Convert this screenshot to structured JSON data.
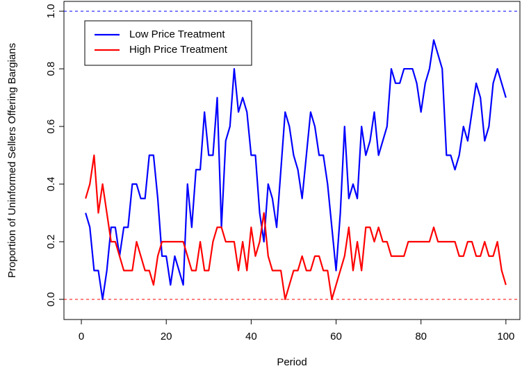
{
  "chart_data": {
    "type": "line",
    "x_label": "Period",
    "y_label": "Proportion of Uninformed Sellers Offering Bargians",
    "x": [
      1,
      2,
      3,
      4,
      5,
      6,
      7,
      8,
      9,
      10,
      11,
      12,
      13,
      14,
      15,
      16,
      17,
      18,
      19,
      20,
      21,
      22,
      23,
      24,
      25,
      26,
      27,
      28,
      29,
      30,
      31,
      32,
      33,
      34,
      35,
      36,
      37,
      38,
      39,
      40,
      41,
      42,
      43,
      44,
      45,
      46,
      47,
      48,
      49,
      50,
      51,
      52,
      53,
      54,
      55,
      56,
      57,
      58,
      59,
      60,
      61,
      62,
      63,
      64,
      65,
      66,
      67,
      68,
      69,
      70,
      71,
      72,
      73,
      74,
      75,
      76,
      77,
      78,
      79,
      80,
      81,
      82,
      83,
      84,
      85,
      86,
      87,
      88,
      89,
      90,
      91,
      92,
      93,
      94,
      95,
      96,
      97,
      98,
      99,
      100
    ],
    "series": [
      {
        "name": "Low Price Treatment",
        "color": "#0000ff",
        "values": [
          0.3,
          0.25,
          0.1,
          0.1,
          0,
          0.1,
          0.25,
          0.25,
          0.15,
          0.25,
          0.25,
          0.4,
          0.4,
          0.35,
          0.35,
          0.5,
          0.5,
          0.35,
          0.15,
          0.15,
          0.05,
          0.15,
          0.1,
          0.05,
          0.4,
          0.25,
          0.45,
          0.45,
          0.65,
          0.5,
          0.5,
          0.7,
          0.25,
          0.55,
          0.6,
          0.8,
          0.65,
          0.7,
          0.65,
          0.5,
          0.5,
          0.3,
          0.2,
          0.4,
          0.35,
          0.25,
          0.45,
          0.65,
          0.6,
          0.5,
          0.45,
          0.35,
          0.5,
          0.65,
          0.6,
          0.5,
          0.5,
          0.4,
          0.25,
          0.1,
          0.3,
          0.6,
          0.35,
          0.4,
          0.35,
          0.6,
          0.5,
          0.55,
          0.65,
          0.5,
          0.55,
          0.6,
          0.8,
          0.75,
          0.75,
          0.8,
          0.8,
          0.8,
          0.75,
          0.65,
          0.75,
          0.8,
          0.9,
          0.85,
          0.8,
          0.5,
          0.5,
          0.45,
          0.5,
          0.6,
          0.55,
          0.65,
          0.75,
          0.7,
          0.55,
          0.6,
          0.75,
          0.8,
          0.75,
          0.7
        ]
      },
      {
        "name": "High Price Treatment",
        "color": "#ff0000",
        "values": [
          0.35,
          0.4,
          0.5,
          0.3,
          0.4,
          0.3,
          0.2,
          0.2,
          0.15,
          0.1,
          0.1,
          0.1,
          0.2,
          0.15,
          0.1,
          0.1,
          0.05,
          0.15,
          0.2,
          0.2,
          0.2,
          0.2,
          0.2,
          0.2,
          0.15,
          0.1,
          0.1,
          0.2,
          0.1,
          0.1,
          0.2,
          0.25,
          0.25,
          0.2,
          0.2,
          0.2,
          0.1,
          0.2,
          0.1,
          0.25,
          0.15,
          0.2,
          0.3,
          0.15,
          0.1,
          0.1,
          0.1,
          0,
          0.05,
          0.1,
          0.1,
          0.15,
          0.1,
          0.1,
          0.15,
          0.15,
          0.1,
          0.1,
          0,
          0.05,
          0.1,
          0.15,
          0.25,
          0.1,
          0.2,
          0.1,
          0.25,
          0.25,
          0.2,
          0.25,
          0.2,
          0.2,
          0.15,
          0.15,
          0.15,
          0.15,
          0.2,
          0.2,
          0.2,
          0.2,
          0.2,
          0.2,
          0.25,
          0.2,
          0.2,
          0.2,
          0.2,
          0.2,
          0.15,
          0.15,
          0.2,
          0.2,
          0.15,
          0.15,
          0.2,
          0.15,
          0.15,
          0.2,
          0.1,
          0.05
        ]
      }
    ],
    "reference_lines": [
      {
        "value": 1,
        "color": "#0000ff"
      },
      {
        "value": 0,
        "color": "#ff0000"
      }
    ],
    "xlim": [
      -4.1,
      103.3
    ],
    "ylim": [
      -0.07,
      1.034
    ],
    "xticks": [
      0,
      20,
      40,
      60,
      80,
      100
    ],
    "yticks": [
      {
        "value": 0,
        "label": "0.0"
      },
      0.2,
      0.4,
      0.6,
      0.8,
      {
        "value": 1,
        "label": "1.0"
      }
    ],
    "legend": "top-left"
  }
}
